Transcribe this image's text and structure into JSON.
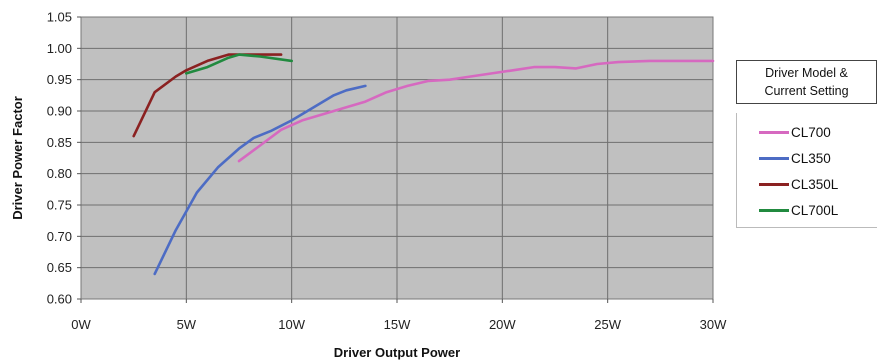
{
  "chart_data": {
    "type": "line",
    "title": "",
    "xlabel": "Driver Output Power",
    "ylabel": "Driver Power Factor",
    "xlim": [
      0,
      30
    ],
    "ylim": [
      0.6,
      1.05
    ],
    "x_ticks": [
      "0W",
      "5W",
      "10W",
      "15W",
      "20W",
      "25W",
      "30W"
    ],
    "y_ticks": [
      "0.60",
      "0.65",
      "0.70",
      "0.75",
      "0.80",
      "0.85",
      "0.90",
      "0.95",
      "1.00",
      "1.05"
    ],
    "grid": true,
    "background": "#c0c0c0",
    "legend_position": "right",
    "legend_title": [
      "Driver Model &",
      "Current Setting"
    ],
    "series": [
      {
        "name": "CL700",
        "color": "#d669c0",
        "x": [
          7.5,
          8.5,
          9.5,
          10.5,
          11.5,
          12.5,
          13.5,
          14.5,
          15.5,
          16.5,
          17.5,
          18.5,
          19.5,
          20.5,
          21.5,
          22.5,
          23.5,
          24.5,
          25.5,
          27,
          28.5,
          30
        ],
        "y": [
          0.82,
          0.845,
          0.87,
          0.885,
          0.895,
          0.905,
          0.915,
          0.93,
          0.94,
          0.948,
          0.95,
          0.955,
          0.96,
          0.965,
          0.97,
          0.97,
          0.968,
          0.975,
          0.978,
          0.98,
          0.98,
          0.98
        ]
      },
      {
        "name": "CL350",
        "color": "#4d6cc4",
        "x": [
          3.5,
          4.5,
          5.5,
          6.5,
          7.5,
          8.2,
          9.0,
          10.0,
          11.0,
          12.0,
          12.6,
          13.5
        ],
        "y": [
          0.64,
          0.71,
          0.77,
          0.81,
          0.84,
          0.857,
          0.868,
          0.885,
          0.905,
          0.925,
          0.933,
          0.94
        ]
      },
      {
        "name": "CL350L",
        "color": "#8b2121",
        "x": [
          2.5,
          3.5,
          4.5,
          5.0,
          6.0,
          7.0,
          8.0,
          9.5
        ],
        "y": [
          0.86,
          0.93,
          0.955,
          0.965,
          0.98,
          0.99,
          0.99,
          0.99
        ]
      },
      {
        "name": "CL700L",
        "color": "#218a3f",
        "x": [
          5.0,
          6.0,
          7.0,
          7.5,
          8.5,
          10.0
        ],
        "y": [
          0.96,
          0.97,
          0.985,
          0.99,
          0.987,
          0.98
        ]
      }
    ]
  }
}
